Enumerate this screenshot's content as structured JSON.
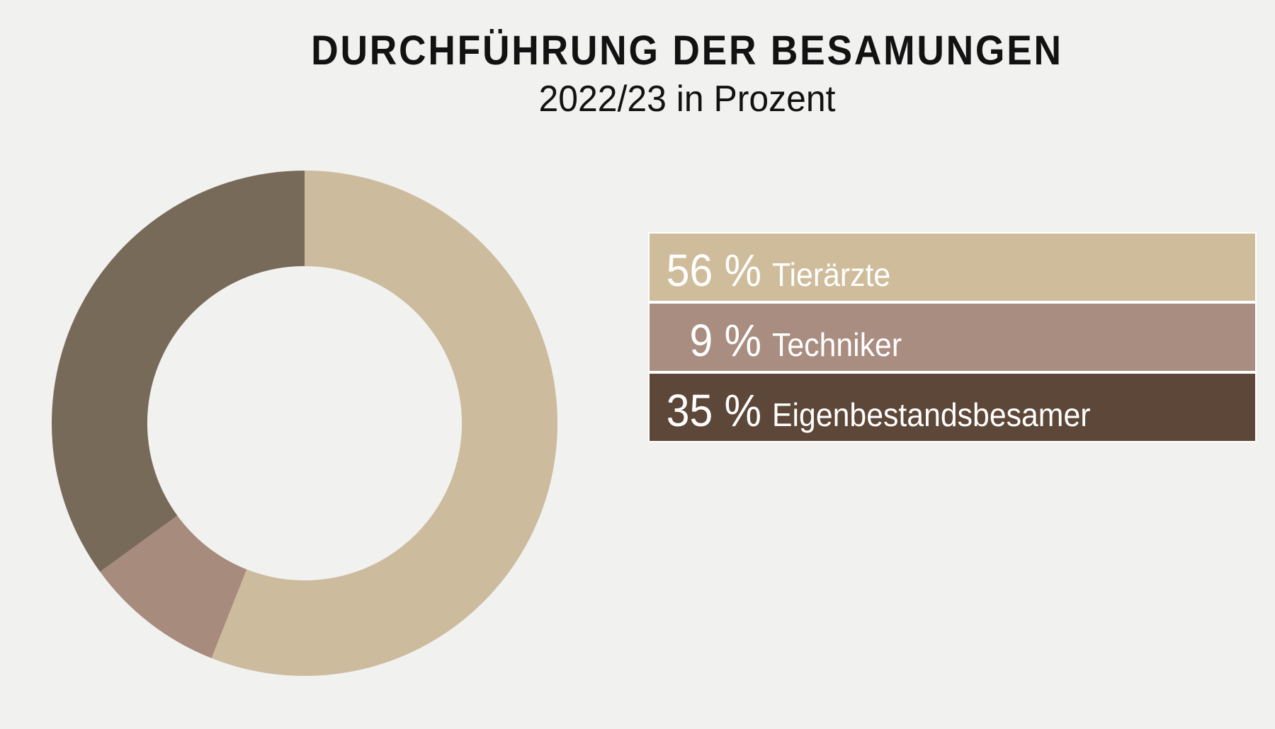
{
  "page": {
    "background": "#f1f1f0"
  },
  "header": {
    "title": "DURCHFÜHRUNG DER BESAMUNGEN",
    "subtitle": "2022/23 in Prozent"
  },
  "chart_data": {
    "type": "pie",
    "subtype": "donut",
    "title": "DURCHFÜHRUNG DER BESAMUNGEN",
    "subtitle": "2022/23 in Prozent",
    "unit": "percent",
    "categories": [
      "Tierärzte",
      "Techniker",
      "Eigenbestandsbesamer"
    ],
    "values": [
      56,
      9,
      35
    ],
    "segment_colors": [
      "#ccbb9c",
      "#a78c7e",
      "#786a59"
    ],
    "start_angle_deg": -90,
    "direction": "clockwise",
    "inner_radius_ratio": 0.622,
    "legend_position": "right"
  },
  "legend": {
    "items": [
      {
        "value": 56,
        "value_label": "56 %",
        "label": "Tierärzte",
        "color": "#cfbc9b",
        "text_color": "#ffffff"
      },
      {
        "value": 9,
        "value_label": "9 %",
        "label": "Techniker",
        "color": "#a98d80",
        "text_color": "#ffffff"
      },
      {
        "value": 35,
        "value_label": "35 %",
        "label": "Eigenbestandsbesamer",
        "color": "#5d4738",
        "text_color": "#ffffff"
      }
    ]
  }
}
